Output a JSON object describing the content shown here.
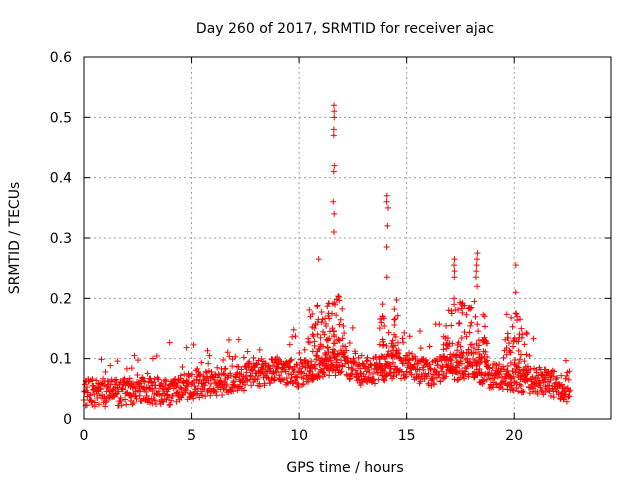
{
  "chart_data": {
    "type": "scatter",
    "title": "Day 260 of 2017, SRMTID for receiver ajac",
    "xlabel": "GPS time / hours",
    "ylabel": "SRMTID / TECUs",
    "xlim": [
      0,
      24.5
    ],
    "ylim": [
      0,
      0.6
    ],
    "xticks": [
      0,
      5,
      10,
      15,
      20
    ],
    "yticks": [
      0,
      0.1,
      0.2,
      0.3,
      0.4,
      0.5,
      0.6
    ],
    "xtick_labels": [
      "0",
      "5",
      "10",
      "15",
      "20"
    ],
    "ytick_labels": [
      "0",
      "0.1",
      "0.2",
      "0.3",
      "0.4",
      "0.5",
      "0.6"
    ],
    "grid": true,
    "marker": "+",
    "color": "#ff0000",
    "series": [
      {
        "name": "SRMTID",
        "x_start": 0,
        "x_end": 22.6,
        "baseline": [
          [
            0,
            0.045
          ],
          [
            1,
            0.042
          ],
          [
            2,
            0.045
          ],
          [
            3,
            0.048
          ],
          [
            4,
            0.045
          ],
          [
            5,
            0.055
          ],
          [
            6,
            0.06
          ],
          [
            7,
            0.065
          ],
          [
            8,
            0.075
          ],
          [
            9,
            0.08
          ],
          [
            10,
            0.075
          ],
          [
            11,
            0.09
          ],
          [
            12,
            0.095
          ],
          [
            13,
            0.075
          ],
          [
            14,
            0.085
          ],
          [
            15,
            0.09
          ],
          [
            16,
            0.075
          ],
          [
            17,
            0.085
          ],
          [
            18,
            0.09
          ],
          [
            19,
            0.07
          ],
          [
            20,
            0.065
          ],
          [
            21,
            0.065
          ],
          [
            22,
            0.055
          ],
          [
            22.6,
            0.045
          ]
        ],
        "peaks": [
          {
            "x": 11.6,
            "y": [
              0.52,
              0.51,
              0.5,
              0.48,
              0.47,
              0.42,
              0.41,
              0.36,
              0.34,
              0.31
            ]
          },
          {
            "x": 14.1,
            "y": [
              0.37,
              0.36,
              0.35,
              0.32,
              0.285,
              0.235
            ]
          },
          {
            "x": 10.9,
            "y": [
              0.265
            ]
          },
          {
            "x": 17.2,
            "y": [
              0.265,
              0.255,
              0.245,
              0.235,
              0.2
            ]
          },
          {
            "x": 18.25,
            "y": [
              0.275,
              0.265,
              0.255,
              0.245,
              0.235,
              0.22
            ]
          },
          {
            "x": 20.1,
            "y": [
              0.255,
              0.21,
              0.175
            ]
          }
        ]
      }
    ]
  }
}
